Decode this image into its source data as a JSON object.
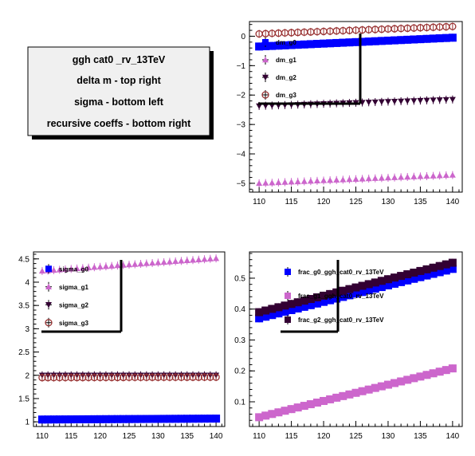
{
  "textbox": {
    "lines": [
      "ggh cat0 _rv_13TeV",
      "delta m -  top right",
      "sigma -  bottom left",
      "recursive coeffs -  bottom right"
    ]
  },
  "chart_data": [
    {
      "type": "scatter",
      "panel": "top-right",
      "xlim": [
        108.5,
        141.5
      ],
      "ylim": [
        -5.3,
        0.5
      ],
      "xticks": [
        110,
        115,
        120,
        125,
        130,
        135,
        140
      ],
      "yticks": [
        0,
        -1,
        -2,
        -3,
        -4,
        -5
      ],
      "ytick_labels": [
        "0",
        "−1",
        "−2",
        "−3",
        "−4",
        "−5"
      ],
      "legend": "top-left",
      "series": [
        {
          "name": "dm_g0",
          "marker": "square",
          "color": "#0000ff",
          "y0": -0.35,
          "y1": -0.05
        },
        {
          "name": "dm_g1",
          "marker": "triangle-up",
          "color": "#cc66cc",
          "y0": -5.0,
          "y1": -4.72
        },
        {
          "name": "dm_g2",
          "marker": "triangle-down",
          "color": "#330033",
          "y0": -2.37,
          "y1": -2.15
        },
        {
          "name": "dm_g3",
          "marker": "circle-open",
          "color": "#993333",
          "y0": 0.08,
          "y1": 0.33
        }
      ]
    },
    {
      "type": "scatter",
      "panel": "bottom-left",
      "xlim": [
        108.5,
        141.5
      ],
      "ylim": [
        0.9,
        4.65
      ],
      "xticks": [
        110,
        115,
        120,
        125,
        130,
        135,
        140
      ],
      "yticks": [
        1,
        1.5,
        2,
        2.5,
        3,
        3.5,
        4,
        4.5
      ],
      "ytick_labels": [
        "1",
        "1.5",
        "2",
        "2.5",
        "3",
        "3.5",
        "4",
        "4.5"
      ],
      "legend": "top-left",
      "series": [
        {
          "name": "sigma_g0",
          "marker": "square",
          "color": "#0000ff",
          "y0": 1.05,
          "y1": 1.07
        },
        {
          "name": "sigma_g1",
          "marker": "triangle-up",
          "color": "#cc66cc",
          "y0": 4.24,
          "y1": 4.51
        },
        {
          "name": "sigma_g2",
          "marker": "triangle-down",
          "color": "#330033",
          "y0": 2.0,
          "y1": 2.0
        },
        {
          "name": "sigma_g3",
          "marker": "circle-open",
          "color": "#993333",
          "y0": 1.95,
          "y1": 1.96
        }
      ]
    },
    {
      "type": "scatter",
      "panel": "bottom-right",
      "xlim": [
        108.5,
        141.5
      ],
      "ylim": [
        0.02,
        0.585
      ],
      "xticks": [
        110,
        115,
        120,
        125,
        130,
        135,
        140
      ],
      "yticks": [
        0.1,
        0.2,
        0.3,
        0.4,
        0.5
      ],
      "ytick_labels": [
        "0.1",
        "0.2",
        "0.3",
        "0.4",
        "0.5"
      ],
      "legend": "top-left",
      "series": [
        {
          "name": "frac_g0_ggh_cat0_rv_13TeV",
          "marker": "square",
          "color": "#0000ff",
          "y0": 0.37,
          "y1": 0.53
        },
        {
          "name": "frac_g1_ggh_cat0_rv_13TeV",
          "marker": "square",
          "color": "#cc66cc",
          "y0": 0.05,
          "y1": 0.208
        },
        {
          "name": "frac_g2_ggh_cat0_rv_13TeV",
          "marker": "square",
          "color": "#330033",
          "y0": 0.39,
          "y1": 0.55
        }
      ]
    }
  ]
}
